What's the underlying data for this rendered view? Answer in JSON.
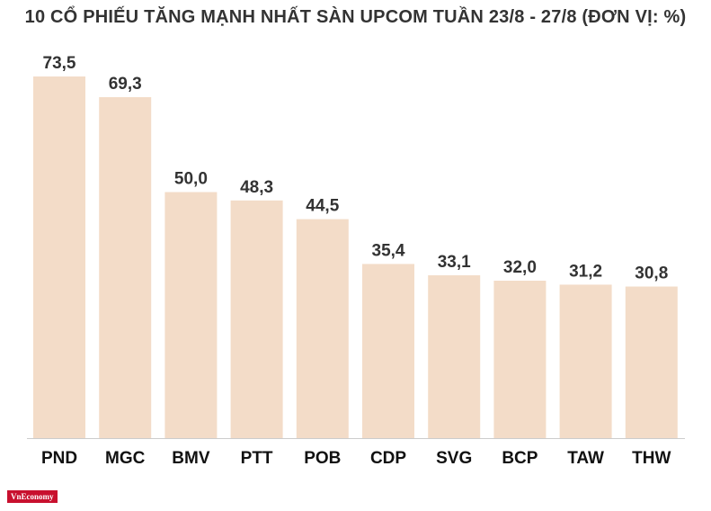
{
  "chart_data": {
    "type": "bar",
    "title": "10 CỔ PHIẾU TĂNG MẠNH NHẤT SÀN UPCOM TUẦN 23/8 - 27/8 (ĐƠN VỊ: %)",
    "categories": [
      "PND",
      "MGC",
      "BMV",
      "PTT",
      "POB",
      "CDP",
      "SVG",
      "BCP",
      "TAW",
      "THW"
    ],
    "values": [
      73.5,
      69.3,
      50.0,
      48.3,
      44.5,
      35.4,
      33.1,
      32.0,
      31.2,
      30.8
    ],
    "value_labels": [
      "73,5",
      "69,3",
      "50,0",
      "48,3",
      "44,5",
      "35,4",
      "33,1",
      "32,0",
      "31,2",
      "30,8"
    ],
    "xlabel": "",
    "ylabel": "",
    "ylim": [
      0,
      73.5
    ],
    "grid": false,
    "bar_color": "#f3dcc8",
    "axis_color": "#cccccc"
  },
  "logo": {
    "text": "VnEconomy",
    "color": "#c8102e"
  }
}
